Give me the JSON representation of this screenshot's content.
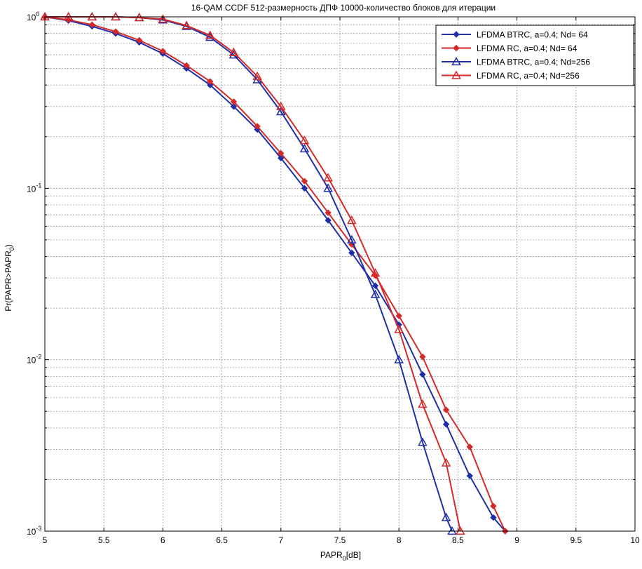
{
  "chart_data": {
    "type": "line",
    "title": "16-QAM CCDF 512-размерность ДПФ 10000-количество блоков для итерации",
    "xlabel_main": "PAPR",
    "xlabel_sub": "0",
    "xlabel_unit": "[dB]",
    "ylabel_main": "Pr(PAPR>PAPR",
    "ylabel_sub": "0",
    "ylabel_close": ")",
    "xlim": [
      5,
      10
    ],
    "ylim": [
      0.001,
      1
    ],
    "yscale": "log",
    "grid": true,
    "legend_position": "top-right",
    "xticks": [
      "5",
      "5.5",
      "6",
      "6.5",
      "7",
      "7.5",
      "8",
      "8.5",
      "9",
      "9.5",
      "10"
    ],
    "yticks": [
      {
        "base": "10",
        "exp": "0"
      },
      {
        "base": "10",
        "exp": "-1"
      },
      {
        "base": "10",
        "exp": "-2"
      },
      {
        "base": "10",
        "exp": "-3"
      }
    ],
    "series": [
      {
        "name": "LFDMA BTRC, a=0.4; Nd= 64",
        "color": "#1f2fa8",
        "marker": "diamond",
        "x": [
          5,
          5.2,
          5.4,
          5.6,
          5.8,
          6,
          6.2,
          6.4,
          6.6,
          6.8,
          7,
          7.2,
          7.4,
          7.6,
          7.8,
          8,
          8.2,
          8.4,
          8.6,
          8.8,
          8.9
        ],
        "y": [
          1,
          0.95,
          0.88,
          0.8,
          0.71,
          0.61,
          0.5,
          0.4,
          0.3,
          0.22,
          0.15,
          0.1,
          0.065,
          0.042,
          0.027,
          0.016,
          0.0082,
          0.0042,
          0.0021,
          0.0012,
          0.001
        ]
      },
      {
        "name": "LFDMA RC, a=0.4; Nd= 64",
        "color": "#d42a2a",
        "marker": "diamond",
        "x": [
          5,
          5.2,
          5.4,
          5.6,
          5.8,
          6,
          6.2,
          6.4,
          6.6,
          6.8,
          7,
          7.2,
          7.4,
          7.6,
          7.8,
          8,
          8.2,
          8.4,
          8.6,
          8.8,
          8.9
        ],
        "y": [
          1,
          0.96,
          0.9,
          0.82,
          0.73,
          0.63,
          0.52,
          0.42,
          0.32,
          0.23,
          0.16,
          0.11,
          0.072,
          0.047,
          0.031,
          0.018,
          0.0104,
          0.0051,
          0.0031,
          0.0014,
          0.001
        ]
      },
      {
        "name": "LFDMA BTRC, a=0.4; Nd=256",
        "color": "#1f2fa8",
        "marker": "triangle",
        "x": [
          5,
          5.2,
          5.4,
          5.6,
          5.8,
          6,
          6.2,
          6.4,
          6.6,
          6.8,
          7,
          7.2,
          7.4,
          7.6,
          7.8,
          8,
          8.2,
          8.4,
          8.45
        ],
        "y": [
          1,
          1,
          1,
          1,
          0.99,
          0.96,
          0.88,
          0.76,
          0.6,
          0.43,
          0.28,
          0.17,
          0.1,
          0.05,
          0.024,
          0.01,
          0.0033,
          0.0012,
          0.001
        ]
      },
      {
        "name": "LFDMA RC, a=0.4; Nd=256",
        "color": "#d42a2a",
        "marker": "triangle",
        "x": [
          5,
          5.2,
          5.4,
          5.6,
          5.8,
          6,
          6.2,
          6.4,
          6.6,
          6.8,
          7,
          7.2,
          7.4,
          7.6,
          7.8,
          8,
          8.2,
          8.4,
          8.52
        ],
        "y": [
          1,
          1,
          1,
          1,
          0.99,
          0.97,
          0.89,
          0.78,
          0.62,
          0.45,
          0.3,
          0.19,
          0.115,
          0.065,
          0.032,
          0.015,
          0.0055,
          0.0025,
          0.001
        ]
      }
    ]
  }
}
